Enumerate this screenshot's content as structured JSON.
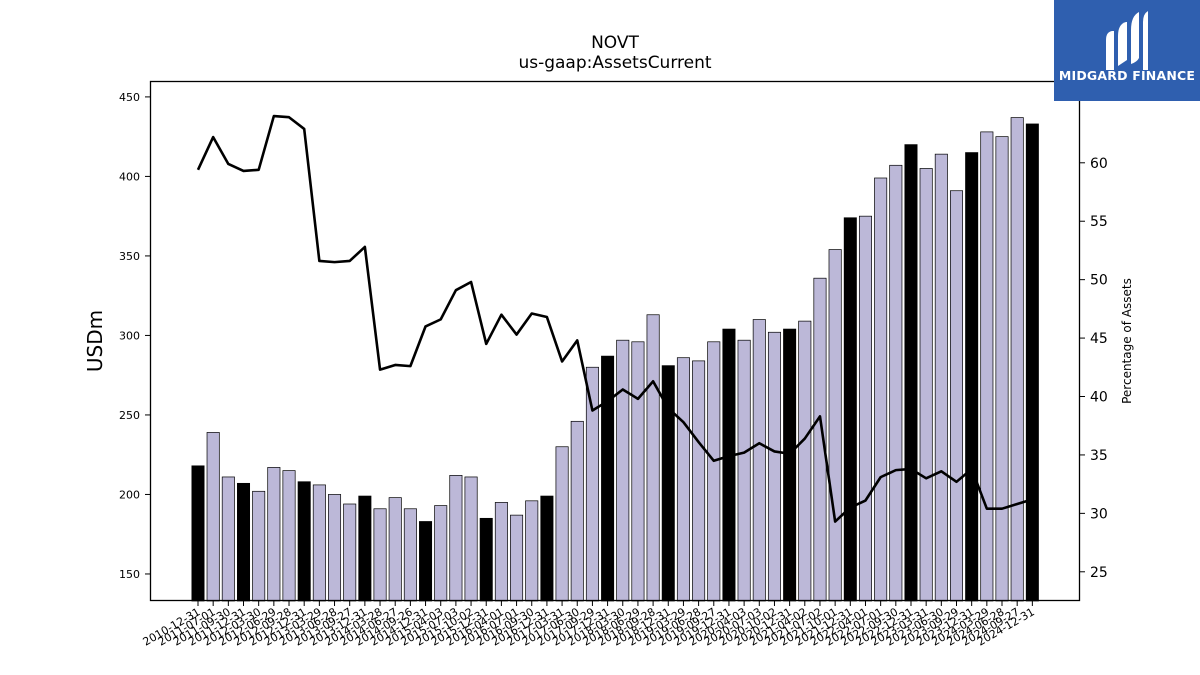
{
  "title": "NOVT",
  "subtitle": "us-gaap:AssetsCurrent",
  "brand": {
    "name": "MIDGARD FINANCE",
    "color": "#2f5faf",
    "logo_icon": "midgard-m-logo-icon"
  },
  "chart_data": {
    "type": "bar",
    "ylabel": "USDm",
    "y2label": "Percentage of Assets",
    "ylim": [
      133,
      460
    ],
    "y2lim": [
      22.5,
      67
    ],
    "yticks": [
      150,
      200,
      250,
      300,
      350,
      400,
      450
    ],
    "y2ticks": [
      25,
      30,
      35,
      40,
      45,
      50,
      55,
      60
    ],
    "colors": {
      "annual": "#000000",
      "quarter": "#bcb8d8",
      "line": "#000000"
    },
    "categories": [
      "2010-12-31",
      "2011-07-01",
      "2011-09-30",
      "2011-12-31",
      "2012-03-30",
      "2012-06-29",
      "2012-09-28",
      "2012-12-31",
      "2013-03-29",
      "2013-06-28",
      "2013-09-27",
      "2013-12-31",
      "2014-03-28",
      "2014-06-27",
      "2014-09-26",
      "2014-12-31",
      "2015-04-03",
      "2015-07-03",
      "2015-10-02",
      "2015-12-31",
      "2016-04-01",
      "2016-07-01",
      "2016-09-30",
      "2016-12-31",
      "2017-03-31",
      "2017-06-30",
      "2017-09-29",
      "2017-12-31",
      "2018-03-30",
      "2018-06-29",
      "2018-09-28",
      "2018-12-31",
      "2019-03-29",
      "2019-06-28",
      "2019-09-27",
      "2019-12-31",
      "2020-04-03",
      "2020-07-03",
      "2020-10-02",
      "2020-12-31",
      "2021-04-02",
      "2021-07-02",
      "2021-10-01",
      "2021-12-31",
      "2022-04-01",
      "2022-07-01",
      "2022-09-30",
      "2022-12-31",
      "2023-03-31",
      "2023-06-30",
      "2023-09-29",
      "2023-12-31",
      "2024-03-29",
      "2024-06-28",
      "2024-09-27",
      "2024-12-31"
    ],
    "series": [
      {
        "values": [
          218,
          239,
          211,
          207,
          202,
          217,
          215,
          208,
          206,
          200,
          194,
          199,
          191,
          198,
          191,
          183,
          193,
          212,
          211,
          185,
          195,
          187,
          196,
          199,
          230,
          246,
          280,
          287,
          297,
          296,
          313,
          281,
          286,
          284,
          296,
          304,
          297,
          310,
          302,
          304,
          309,
          336,
          354,
          374,
          375,
          399,
          407,
          420,
          405,
          414,
          391,
          415,
          428,
          425,
          437,
          433
        ],
        "annual_flags": [
          true,
          false,
          false,
          true,
          false,
          false,
          false,
          true,
          false,
          false,
          false,
          true,
          false,
          false,
          false,
          true,
          false,
          false,
          false,
          true,
          false,
          false,
          false,
          true,
          false,
          false,
          false,
          true,
          false,
          false,
          false,
          true,
          false,
          false,
          false,
          true,
          false,
          false,
          false,
          true,
          false,
          false,
          false,
          true,
          false,
          false,
          false,
          true,
          false,
          false,
          false,
          true,
          false,
          false,
          false,
          true
        ]
      },
      {
        "axis": "right",
        "values": [
          59.4,
          62.2,
          59.9,
          59.3,
          59.4,
          64.0,
          63.9,
          62.9,
          51.6,
          51.5,
          51.6,
          52.8,
          42.3,
          42.7,
          42.6,
          46.0,
          46.6,
          49.1,
          49.8,
          44.5,
          47.0,
          45.3,
          47.1,
          46.8,
          43.0,
          44.8,
          38.8,
          39.6,
          40.6,
          39.8,
          41.3,
          39.0,
          37.8,
          36.1,
          34.5,
          34.9,
          35.2,
          36.0,
          35.3,
          35.1,
          36.4,
          38.3,
          29.3,
          30.5,
          31.1,
          33.1,
          33.7,
          33.8,
          33.0,
          33.6,
          32.7,
          33.8,
          30.4,
          30.4,
          30.8,
          31.2
        ]
      }
    ]
  }
}
